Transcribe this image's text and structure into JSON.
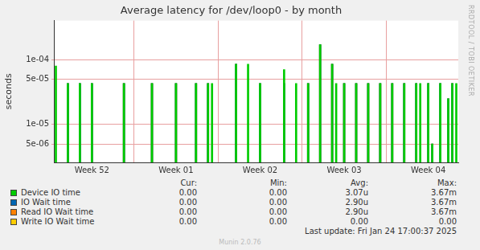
{
  "chart_data": {
    "type": "bar",
    "title": "Average latency for /dev/loop0 - by month",
    "y_label": "seconds",
    "log": "y",
    "grid": true,
    "ylim": [
      2.6e-06,
      0.0004
    ],
    "yticks": [
      {
        "value": 5e-06,
        "label": "5e-06"
      },
      {
        "value": 1e-05,
        "label": "1e-05"
      },
      {
        "value": 5e-05,
        "label": "5e-05"
      },
      {
        "value": 0.0001,
        "label": "1e-04"
      }
    ],
    "categories": [
      null,
      null,
      null,
      null,
      null,
      null,
      null,
      null,
      null,
      "Week 52",
      null,
      null,
      null,
      null,
      null,
      null,
      null,
      null,
      null,
      null,
      null,
      null,
      null,
      null,
      null,
      null,
      null,
      null,
      null,
      null,
      "Week 01",
      null,
      null,
      null,
      null,
      null,
      null,
      null,
      null,
      null,
      null,
      null,
      null,
      null,
      null,
      null,
      null,
      null,
      null,
      null,
      null,
      "Week 02",
      null,
      null,
      null,
      null,
      null,
      null,
      null,
      null,
      null,
      null,
      null,
      null,
      null,
      null,
      null,
      null,
      null,
      null,
      null,
      null,
      "Week 03",
      null,
      null,
      null,
      null,
      null,
      null,
      null,
      null,
      null,
      null,
      null,
      null,
      null,
      null,
      null,
      null,
      null,
      null,
      null,
      null,
      "Week 04",
      null,
      null,
      null,
      null,
      null,
      null,
      null
    ],
    "stats_columns": [
      "Cur:",
      "Min:",
      "Avg:",
      "Max:"
    ],
    "series": [
      {
        "name": "Device IO time",
        "color": "#00cc00",
        "stats": [
          "0.00",
          "0.00",
          "3.07u",
          "3.67m"
        ],
        "values": [
          8e-05,
          null,
          null,
          4.3e-05,
          null,
          null,
          4.3e-05,
          null,
          null,
          4.3e-05,
          null,
          null,
          null,
          null,
          null,
          null,
          null,
          4.3e-05,
          null,
          null,
          null,
          null,
          null,
          null,
          4.3e-05,
          null,
          null,
          null,
          null,
          null,
          4.3e-05,
          null,
          null,
          null,
          null,
          4.3e-05,
          null,
          null,
          4.3e-05,
          4.3e-05,
          null,
          null,
          null,
          null,
          null,
          8.5e-05,
          null,
          null,
          8.5e-05,
          null,
          null,
          4.3e-05,
          null,
          null,
          null,
          null,
          null,
          7e-05,
          null,
          null,
          4.3e-05,
          null,
          null,
          4.3e-05,
          null,
          null,
          0.00017,
          null,
          null,
          8.5e-05,
          4.3e-05,
          null,
          4.3e-05,
          null,
          null,
          4.3e-05,
          null,
          null,
          4.3e-05,
          null,
          null,
          4.3e-05,
          null,
          null,
          4.3e-05,
          null,
          null,
          4.3e-05,
          null,
          null,
          4.3e-05,
          4.3e-05,
          null,
          4.3e-05,
          5e-06,
          null,
          4.3e-05,
          null,
          2.5e-05,
          4.3e-05,
          4.3e-05
        ]
      },
      {
        "name": "IO Wait time",
        "color": "#0066b3",
        "stats": [
          "0.00",
          "0.00",
          "2.90u",
          "3.67m"
        ],
        "values": [
          null,
          null,
          null,
          4.3e-05,
          null,
          null,
          4.3e-05,
          null,
          null,
          4.3e-05,
          null,
          null,
          null,
          null,
          null,
          null,
          null,
          4.3e-05,
          null,
          null,
          null,
          null,
          null,
          null,
          4.3e-05,
          null,
          null,
          null,
          null,
          null,
          4.3e-05,
          null,
          null,
          null,
          null,
          4.3e-05,
          null,
          null,
          4.3e-05,
          null,
          null,
          null,
          null,
          null,
          null,
          8.5e-05,
          null,
          null,
          null,
          null,
          null,
          4.3e-05,
          null,
          null,
          null,
          null,
          null,
          4.3e-05,
          null,
          null,
          null,
          null,
          null,
          4.3e-05,
          null,
          null,
          0.00017,
          null,
          null,
          8.5e-05,
          null,
          null,
          4.3e-05,
          null,
          null,
          4.3e-05,
          null,
          null,
          4.3e-05,
          null,
          null,
          4.3e-05,
          null,
          null,
          4.3e-05,
          null,
          null,
          4.3e-05,
          null,
          null,
          4.3e-05,
          null,
          null,
          4.3e-05,
          5e-06,
          null,
          4.3e-05,
          null,
          2.5e-05,
          4.3e-05,
          null
        ]
      },
      {
        "name": "Read IO Wait time",
        "color": "#ff8000",
        "stats": [
          "0.00",
          "0.00",
          "2.90u",
          "3.67m"
        ],
        "values": [
          null,
          null,
          null,
          4.3e-05,
          null,
          null,
          4.3e-05,
          null,
          null,
          4.3e-05,
          null,
          null,
          null,
          null,
          null,
          null,
          null,
          4.3e-05,
          null,
          null,
          null,
          null,
          null,
          null,
          4.3e-05,
          null,
          null,
          null,
          null,
          null,
          4.3e-05,
          null,
          null,
          null,
          null,
          4.3e-05,
          null,
          null,
          4.3e-05,
          null,
          null,
          null,
          null,
          null,
          null,
          8.5e-05,
          null,
          null,
          null,
          null,
          null,
          4.3e-05,
          null,
          null,
          null,
          null,
          null,
          4.3e-05,
          null,
          null,
          null,
          null,
          null,
          4.3e-05,
          null,
          null,
          0.00017,
          null,
          null,
          8.5e-05,
          null,
          null,
          4.3e-05,
          null,
          null,
          4.3e-05,
          null,
          null,
          4.3e-05,
          null,
          null,
          4.3e-05,
          null,
          null,
          4.3e-05,
          null,
          null,
          4.3e-05,
          null,
          null,
          4.3e-05,
          null,
          null,
          4.3e-05,
          5e-06,
          null,
          4.3e-05,
          null,
          2.5e-05,
          4.3e-05,
          null
        ]
      },
      {
        "name": "Write IO Wait time",
        "color": "#ffcc00",
        "stats": [
          "0.00",
          "0.00",
          "0.00",
          "0.00"
        ],
        "values": [
          null,
          null,
          null,
          null,
          null,
          null,
          null,
          null,
          null,
          null,
          null,
          null,
          null,
          null,
          null,
          null,
          null,
          null,
          null,
          null,
          null,
          null,
          null,
          null,
          null,
          null,
          null,
          null,
          null,
          null,
          null,
          null,
          null,
          null,
          null,
          null,
          null,
          null,
          null,
          null,
          null,
          null,
          null,
          null,
          null,
          null,
          null,
          null,
          null,
          null,
          null,
          null,
          null,
          null,
          null,
          null,
          null,
          null,
          null,
          null,
          null,
          null,
          null,
          null,
          null,
          null,
          null,
          null,
          null,
          null,
          null,
          null,
          null,
          null,
          null,
          null,
          null,
          null,
          null,
          null,
          null,
          null,
          null,
          null,
          null,
          null,
          null,
          null,
          null,
          null,
          null,
          null,
          null,
          null,
          null,
          null,
          null,
          null,
          null,
          null,
          null
        ]
      }
    ],
    "side_text": "RRDTOOL / TOBI OETIKER",
    "footer": "Last update: Fri Jan 24 17:00:37 2025",
    "credit": "Munin 2.0.76"
  }
}
